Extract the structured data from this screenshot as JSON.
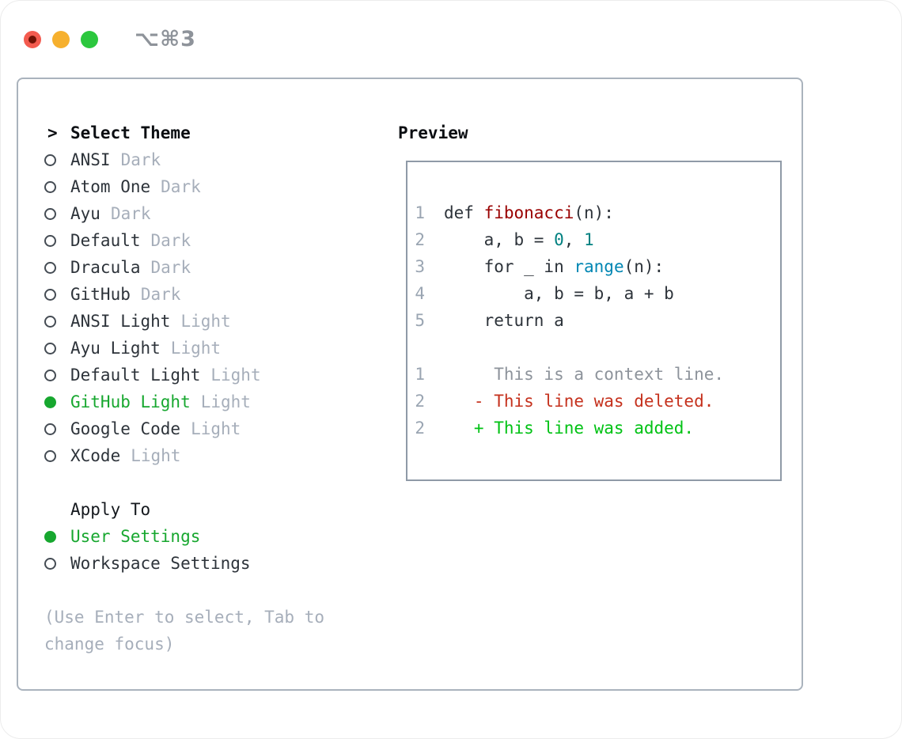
{
  "titlebar": {
    "shortcut": "⌥⌘3"
  },
  "theme_picker": {
    "header_prefix": ">",
    "header": "Select Theme",
    "items": [
      {
        "name": "ANSI",
        "variant": "Dark",
        "selected": false
      },
      {
        "name": "Atom One",
        "variant": "Dark",
        "selected": false
      },
      {
        "name": "Ayu",
        "variant": "Dark",
        "selected": false
      },
      {
        "name": "Default",
        "variant": "Dark",
        "selected": false
      },
      {
        "name": "Dracula",
        "variant": "Dark",
        "selected": false
      },
      {
        "name": "GitHub",
        "variant": "Dark",
        "selected": false
      },
      {
        "name": "ANSI Light",
        "variant": "Light",
        "selected": false
      },
      {
        "name": "Ayu Light",
        "variant": "Light",
        "selected": false
      },
      {
        "name": "Default Light",
        "variant": "Light",
        "selected": false
      },
      {
        "name": "GitHub Light",
        "variant": "Light",
        "selected": true
      },
      {
        "name": "Google Code",
        "variant": "Light",
        "selected": false
      },
      {
        "name": "XCode",
        "variant": "Light",
        "selected": false
      }
    ]
  },
  "apply_to": {
    "header": "Apply To",
    "items": [
      {
        "label": "User Settings",
        "selected": true
      },
      {
        "label": "Workspace Settings",
        "selected": false
      }
    ]
  },
  "hint": "(Use Enter to select, Tab to change focus)",
  "preview": {
    "header": "Preview",
    "lines": [
      {
        "num": "1",
        "tokens": [
          {
            "text": "def ",
            "color": "plain"
          },
          {
            "text": "fibonacci",
            "color": "function"
          },
          {
            "text": "(n):",
            "color": "plain"
          }
        ]
      },
      {
        "num": "2",
        "tokens": [
          {
            "text": "    a, b = ",
            "color": "plain"
          },
          {
            "text": "0",
            "color": "number"
          },
          {
            "text": ", ",
            "color": "plain"
          },
          {
            "text": "1",
            "color": "number"
          }
        ]
      },
      {
        "num": "3",
        "tokens": [
          {
            "text": "    for _ in ",
            "color": "plain"
          },
          {
            "text": "range",
            "color": "builtin"
          },
          {
            "text": "(n):",
            "color": "plain"
          }
        ]
      },
      {
        "num": "4",
        "tokens": [
          {
            "text": "        a, b = b, a + b",
            "color": "plain"
          }
        ]
      },
      {
        "num": "5",
        "tokens": [
          {
            "text": "    return a",
            "color": "plain"
          }
        ]
      },
      {
        "num": "",
        "tokens": []
      },
      {
        "num": "1",
        "tokens": [
          {
            "text": "     This is a context line.",
            "color": "context"
          }
        ]
      },
      {
        "num": "2",
        "tokens": [
          {
            "text": "   - This line was deleted.",
            "color": "deleted"
          }
        ]
      },
      {
        "num": "2",
        "tokens": [
          {
            "text": "   + This line was added.",
            "color": "added"
          }
        ]
      }
    ]
  },
  "colors": {
    "accent_green": "#17a72f",
    "function_red": "#990000",
    "number_teal": "#008080",
    "builtin_blue": "#0086b3",
    "context_gray": "#8d939b",
    "deleted_red": "#c5311d",
    "added_green": "#00c214",
    "muted_gray": "#a6aeba",
    "text_dark": "#2d333a",
    "traffic_red": "#f35b4f",
    "traffic_yellow": "#f6b02e",
    "traffic_green": "#2cc73e"
  }
}
